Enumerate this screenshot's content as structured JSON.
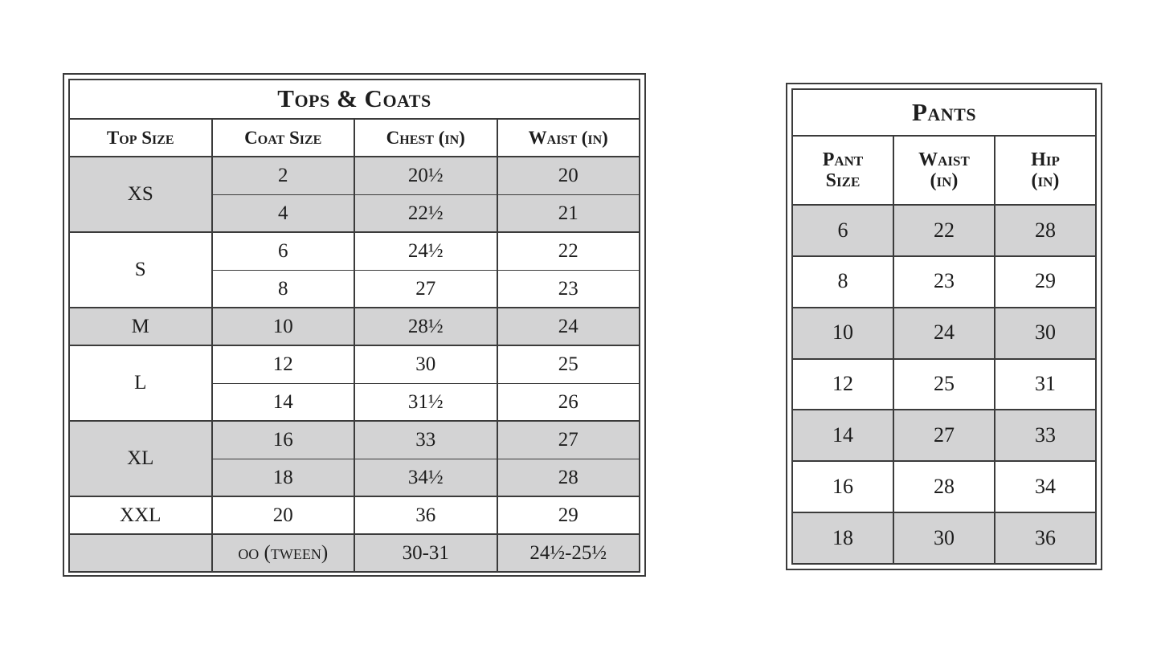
{
  "colors": {
    "background": "#ffffff",
    "shaded_row": "#d3d3d4",
    "border": "#3b3b3b",
    "text": "#1d1d1d"
  },
  "tops_table": {
    "title": "Tops & Coats",
    "columns": [
      {
        "lines": [
          "Top Size"
        ]
      },
      {
        "lines": [
          "Coat Size"
        ]
      },
      {
        "lines": [
          "Chest (in)"
        ]
      },
      {
        "lines": [
          "Waist (in)"
        ]
      }
    ],
    "groups": [
      {
        "top_size": "XS",
        "shaded": true,
        "rows": [
          [
            "2",
            "20½",
            "20"
          ],
          [
            "4",
            "22½",
            "21"
          ]
        ]
      },
      {
        "top_size": "S",
        "shaded": false,
        "rows": [
          [
            "6",
            "24½",
            "22"
          ],
          [
            "8",
            "27",
            "23"
          ]
        ]
      },
      {
        "top_size": "M",
        "shaded": true,
        "rows": [
          [
            "10",
            "28½",
            "24"
          ]
        ]
      },
      {
        "top_size": "L",
        "shaded": false,
        "rows": [
          [
            "12",
            "30",
            "25"
          ],
          [
            "14",
            "31½",
            "26"
          ]
        ]
      },
      {
        "top_size": "XL",
        "shaded": true,
        "rows": [
          [
            "16",
            "33",
            "27"
          ],
          [
            "18",
            "34½",
            "28"
          ]
        ]
      },
      {
        "top_size": "XXL",
        "shaded": false,
        "rows": [
          [
            "20",
            "36",
            "29"
          ]
        ]
      },
      {
        "top_size": "",
        "shaded": true,
        "rows": [
          [
            "oo (tween)",
            "30-31",
            "24½-25½"
          ]
        ]
      }
    ]
  },
  "pants_table": {
    "title": "Pants",
    "columns": [
      {
        "lines": [
          "Pant",
          "Size"
        ]
      },
      {
        "lines": [
          "Waist",
          "(in)"
        ]
      },
      {
        "lines": [
          "Hip",
          "(in)"
        ]
      }
    ],
    "rows": [
      {
        "shaded": true,
        "cells": [
          "6",
          "22",
          "28"
        ]
      },
      {
        "shaded": false,
        "cells": [
          "8",
          "23",
          "29"
        ]
      },
      {
        "shaded": true,
        "cells": [
          "10",
          "24",
          "30"
        ]
      },
      {
        "shaded": false,
        "cells": [
          "12",
          "25",
          "31"
        ]
      },
      {
        "shaded": true,
        "cells": [
          "14",
          "27",
          "33"
        ]
      },
      {
        "shaded": false,
        "cells": [
          "16",
          "28",
          "34"
        ]
      },
      {
        "shaded": true,
        "cells": [
          "18",
          "30",
          "36"
        ]
      }
    ]
  }
}
